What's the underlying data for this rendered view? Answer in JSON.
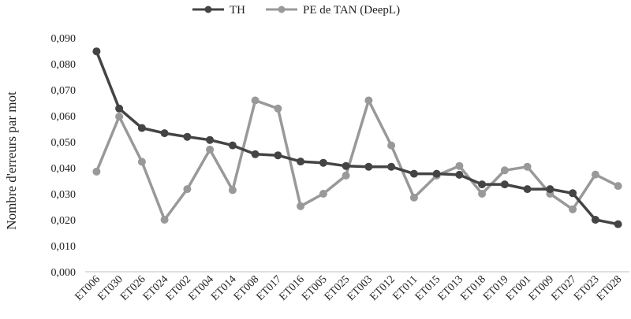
{
  "chart_data": {
    "type": "line",
    "title": "",
    "xlabel": "",
    "ylabel": "Nombre d'erreurs par mot",
    "ylim": [
      0,
      0.09
    ],
    "yticks": [
      "0,000",
      "0,010",
      "0,020",
      "0,030",
      "0,040",
      "0,050",
      "0,060",
      "0,070",
      "0,080",
      "0,090"
    ],
    "grid": false,
    "legend_position": "top",
    "categories": [
      "ET006",
      "ET030",
      "ET026",
      "ET024",
      "ET002",
      "ET004",
      "ET014",
      "ET008",
      "ET017",
      "ET016",
      "ET005",
      "ET025",
      "ET003",
      "ET012",
      "ET011",
      "ET015",
      "ET013",
      "ET018",
      "ET019",
      "ET001",
      "ET009",
      "ET027",
      "ET023",
      "ET028"
    ],
    "series": [
      {
        "name": "TH",
        "color": "#444444",
        "values": [
          0.0848,
          0.0628,
          0.0553,
          0.0533,
          0.0519,
          0.0507,
          0.0486,
          0.0452,
          0.0448,
          0.0424,
          0.0419,
          0.0407,
          0.0404,
          0.0404,
          0.0377,
          0.0377,
          0.0373,
          0.0336,
          0.0336,
          0.0318,
          0.0318,
          0.0302,
          0.02,
          0.0183
        ]
      },
      {
        "name": "PE de TAN (DeepL)",
        "color": "#999999",
        "values": [
          0.0385,
          0.0597,
          0.0423,
          0.02,
          0.0318,
          0.047,
          0.0314,
          0.0659,
          0.0628,
          0.0252,
          0.03,
          0.037,
          0.0659,
          0.0486,
          0.0285,
          0.037,
          0.0407,
          0.03,
          0.039,
          0.0404,
          0.03,
          0.024,
          0.0374,
          0.033
        ]
      }
    ]
  }
}
